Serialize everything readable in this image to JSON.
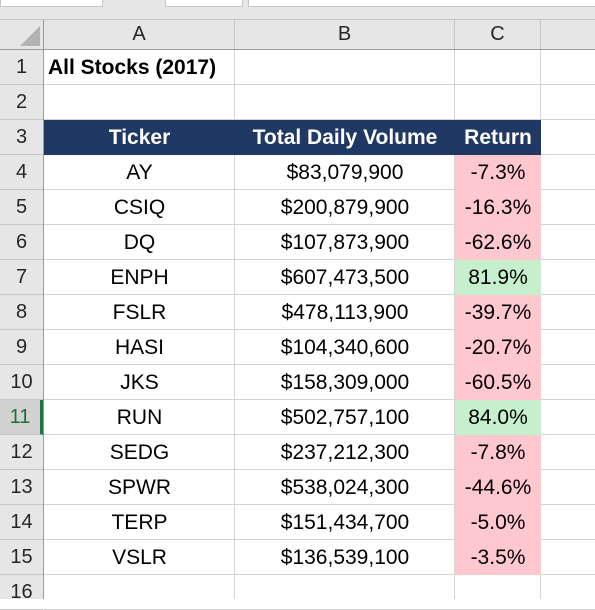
{
  "columns": [
    "A",
    "B",
    "C"
  ],
  "rows": [
    "1",
    "2",
    "3",
    "4",
    "5",
    "6",
    "7",
    "8",
    "9",
    "10",
    "11",
    "12",
    "13",
    "14",
    "15",
    "16"
  ],
  "active_row": "11",
  "title": "All Stocks (2017)",
  "headers": {
    "ticker": "Ticker",
    "volume": "Total Daily Volume",
    "return": "Return"
  },
  "colors": {
    "header_bg": "#203864",
    "negative_fill": "#ffc7ce",
    "positive_fill": "#c6efce",
    "selection_green": "#217346"
  },
  "data": [
    {
      "ticker": "AY",
      "volume": "$83,079,900",
      "return": "-7.3%",
      "sign": "neg"
    },
    {
      "ticker": "CSIQ",
      "volume": "$200,879,900",
      "return": "-16.3%",
      "sign": "neg"
    },
    {
      "ticker": "DQ",
      "volume": "$107,873,900",
      "return": "-62.6%",
      "sign": "neg"
    },
    {
      "ticker": "ENPH",
      "volume": "$607,473,500",
      "return": "81.9%",
      "sign": "pos"
    },
    {
      "ticker": "FSLR",
      "volume": "$478,113,900",
      "return": "-39.7%",
      "sign": "neg"
    },
    {
      "ticker": "HASI",
      "volume": "$104,340,600",
      "return": "-20.7%",
      "sign": "neg"
    },
    {
      "ticker": "JKS",
      "volume": "$158,309,000",
      "return": "-60.5%",
      "sign": "neg"
    },
    {
      "ticker": "RUN",
      "volume": "$502,757,100",
      "return": "84.0%",
      "sign": "pos"
    },
    {
      "ticker": "SEDG",
      "volume": "$237,212,300",
      "return": "-7.8%",
      "sign": "neg"
    },
    {
      "ticker": "SPWR",
      "volume": "$538,024,300",
      "return": "-44.6%",
      "sign": "neg"
    },
    {
      "ticker": "TERP",
      "volume": "$151,434,700",
      "return": "-5.0%",
      "sign": "neg"
    },
    {
      "ticker": "VSLR",
      "volume": "$136,539,100",
      "return": "-3.5%",
      "sign": "neg"
    }
  ]
}
